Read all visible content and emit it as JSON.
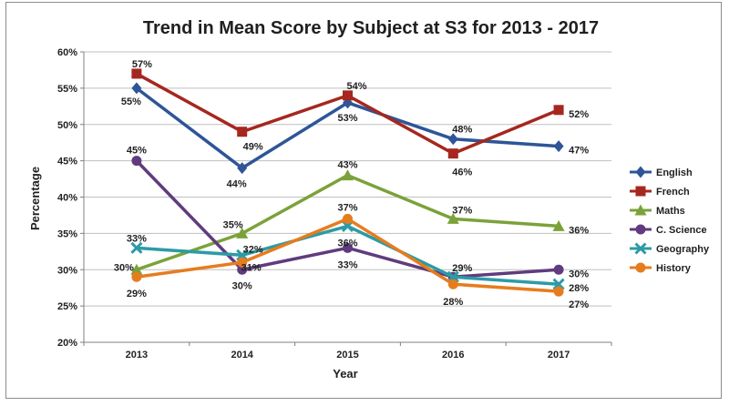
{
  "chart_data": {
    "type": "line",
    "title": "Trend in Mean Score by Subject at S3 for 2013 - 2017",
    "xlabel": "Year",
    "ylabel": "Percentage",
    "categories": [
      "2013",
      "2014",
      "2015",
      "2016",
      "2017"
    ],
    "yticks": [
      "20%",
      "25%",
      "30%",
      "35%",
      "40%",
      "45%",
      "50%",
      "55%",
      "60%"
    ],
    "ylim": [
      20,
      60
    ],
    "grid": "horizontal",
    "legend_position": "right",
    "series": [
      {
        "name": "English",
        "values": [
          55,
          44,
          53,
          48,
          47
        ],
        "labels": [
          "55%",
          "44%",
          "53%",
          "48%",
          "47%"
        ],
        "color": "#2e5597",
        "marker": "diamond"
      },
      {
        "name": "French",
        "values": [
          57,
          49,
          54,
          46,
          52
        ],
        "labels": [
          "57%",
          "49%",
          "54%",
          "46%",
          "52%"
        ],
        "color": "#a5271f",
        "marker": "square"
      },
      {
        "name": "Maths",
        "values": [
          30,
          35,
          43,
          37,
          36
        ],
        "labels": [
          "30%",
          "35%",
          "43%",
          "37%",
          "36%"
        ],
        "color": "#7ba23a",
        "marker": "triangle"
      },
      {
        "name": "C. Science",
        "values": [
          45,
          30,
          33,
          29,
          30
        ],
        "labels": [
          "45%",
          "30%",
          "33%",
          "29%",
          "30%"
        ],
        "color": "#603b7e",
        "marker": "circle"
      },
      {
        "name": "Geography",
        "values": [
          33,
          32,
          36,
          29,
          28
        ],
        "labels": [
          "33%",
          "32%",
          "36%",
          "29%",
          "28%"
        ],
        "color": "#2c9ba5",
        "marker": "x"
      },
      {
        "name": "History",
        "values": [
          29,
          31,
          37,
          28,
          27
        ],
        "labels": [
          "29%",
          "31%",
          "37%",
          "28%",
          "27%"
        ],
        "color": "#e67c1e",
        "marker": "circle"
      }
    ]
  }
}
